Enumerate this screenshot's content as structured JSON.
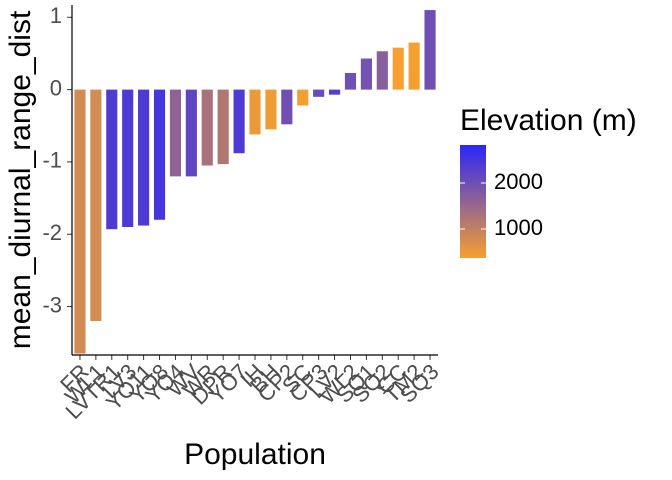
{
  "chart_data": {
    "type": "bar",
    "y_label": "mean_diurnal_range_dist",
    "x_label": "Population",
    "categories": [
      "FR",
      "WL1",
      "LVTR1",
      "LV3",
      "YO11",
      "YO8",
      "YO4",
      "WV",
      "WR",
      "DPR",
      "YO7",
      "IH",
      "BH",
      "CP2",
      "SC",
      "CP3",
      "LV2",
      "WL2",
      "SQ1",
      "SQ2",
      "CC",
      "TM2",
      "SQ3"
    ],
    "values": [
      -3.65,
      -3.2,
      -1.93,
      -1.9,
      -1.88,
      -1.8,
      -1.2,
      -1.2,
      -1.05,
      -1.03,
      -0.88,
      -0.62,
      -0.55,
      -0.48,
      -0.22,
      -0.1,
      -0.07,
      0.23,
      0.43,
      0.53,
      0.58,
      0.65,
      1.1
    ],
    "color_values": [
      800,
      780,
      2400,
      2400,
      2400,
      2500,
      1600,
      2200,
      1300,
      1200,
      2400,
      500,
      450,
      2000,
      400,
      2100,
      2300,
      2000,
      1950,
      1700,
      350,
      400,
      2000
    ],
    "ylim": [
      -3.67,
      1.17
    ],
    "yticks": [
      -3,
      -2,
      -1,
      0,
      1
    ],
    "legend": {
      "title": "Elevation (m)",
      "ticks": [
        1000,
        2000
      ],
      "lim": [
        370,
        2826
      ],
      "low": "#F5A030",
      "high": "#2B26F7"
    }
  }
}
